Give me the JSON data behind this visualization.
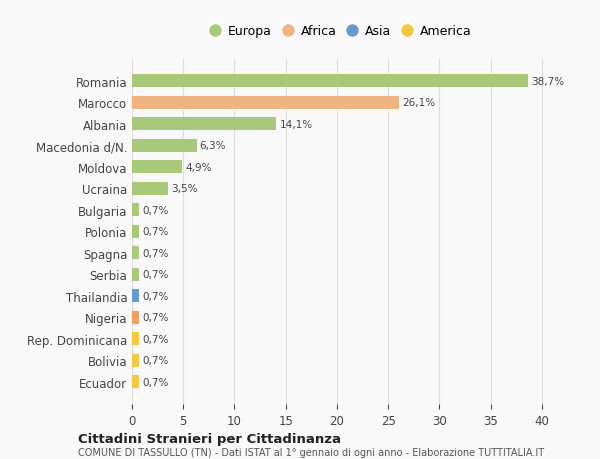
{
  "categories": [
    "Romania",
    "Marocco",
    "Albania",
    "Macedonia d/N.",
    "Moldova",
    "Ucraina",
    "Bulgaria",
    "Polonia",
    "Spagna",
    "Serbia",
    "Thailandia",
    "Nigeria",
    "Rep. Dominicana",
    "Bolivia",
    "Ecuador"
  ],
  "values": [
    38.7,
    26.1,
    14.1,
    6.3,
    4.9,
    3.5,
    0.7,
    0.7,
    0.7,
    0.7,
    0.7,
    0.7,
    0.7,
    0.7,
    0.7
  ],
  "labels": [
    "38,7%",
    "26,1%",
    "14,1%",
    "6,3%",
    "4,9%",
    "3,5%",
    "0,7%",
    "0,7%",
    "0,7%",
    "0,7%",
    "0,7%",
    "0,7%",
    "0,7%",
    "0,7%",
    "0,7%"
  ],
  "colors": [
    "#a8c87a",
    "#f0b482",
    "#a8c87a",
    "#a8c87a",
    "#a8c87a",
    "#a8c87a",
    "#a8c87a",
    "#a8c87a",
    "#a8c87a",
    "#a8c87a",
    "#6699cc",
    "#f0a060",
    "#f5c842",
    "#f5c842",
    "#f5c842"
  ],
  "continent_colors": {
    "Europa": "#a8c87a",
    "Africa": "#f0b482",
    "Asia": "#6699cc",
    "America": "#f5c842"
  },
  "legend_labels": [
    "Europa",
    "Africa",
    "Asia",
    "America"
  ],
  "title1": "Cittadini Stranieri per Cittadinanza",
  "title2": "COMUNE DI TASSULLO (TN) - Dati ISTAT al 1° gennaio di ogni anno - Elaborazione TUTTITALIA.IT",
  "xlim": [
    0,
    41
  ],
  "xticks": [
    0,
    5,
    10,
    15,
    20,
    25,
    30,
    35,
    40
  ],
  "bg_color": "#f9f9f9",
  "grid_color": "#dddddd"
}
